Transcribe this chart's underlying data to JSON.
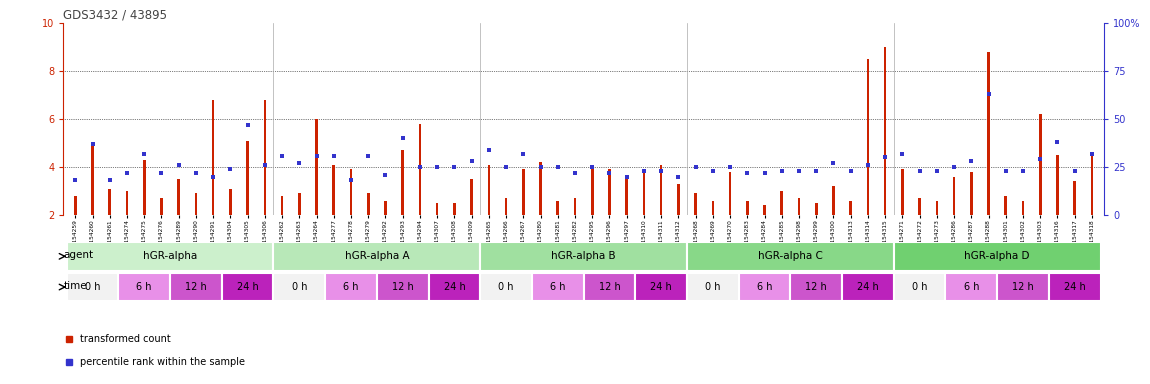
{
  "title": "GDS3432 / 43895",
  "samples": [
    "GSM154259",
    "GSM154260",
    "GSM154261",
    "GSM154274",
    "GSM154275",
    "GSM154276",
    "GSM154289",
    "GSM154290",
    "GSM154291",
    "GSM154304",
    "GSM154305",
    "GSM154306",
    "GSM154262",
    "GSM154263",
    "GSM154264",
    "GSM154277",
    "GSM154278",
    "GSM154279",
    "GSM154292",
    "GSM154293",
    "GSM154294",
    "GSM154307",
    "GSM154308",
    "GSM154309",
    "GSM154265",
    "GSM154266",
    "GSM154267",
    "GSM154280",
    "GSM154281",
    "GSM154282",
    "GSM154295",
    "GSM154296",
    "GSM154297",
    "GSM154310",
    "GSM154311",
    "GSM154312",
    "GSM154268",
    "GSM154269",
    "GSM154270",
    "GSM154283",
    "GSM154284",
    "GSM154285",
    "GSM154298",
    "GSM154299",
    "GSM154300",
    "GSM154313",
    "GSM154314",
    "GSM154315",
    "GSM154271",
    "GSM154272",
    "GSM154273",
    "GSM154286",
    "GSM154287",
    "GSM154288",
    "GSM154301",
    "GSM154302",
    "GSM154303",
    "GSM154316",
    "GSM154317",
    "GSM154318"
  ],
  "red_values": [
    2.8,
    4.9,
    3.1,
    3.0,
    4.3,
    2.7,
    3.5,
    2.9,
    6.8,
    3.1,
    5.1,
    6.8,
    2.8,
    2.9,
    6.0,
    4.1,
    3.9,
    2.9,
    2.6,
    4.7,
    5.8,
    2.5,
    2.5,
    3.5,
    4.1,
    2.7,
    3.9,
    4.2,
    2.6,
    2.7,
    4.0,
    3.9,
    3.5,
    3.9,
    4.1,
    3.3,
    2.9,
    2.6,
    3.8,
    2.6,
    2.4,
    3.0,
    2.7,
    2.5,
    3.2,
    2.6,
    8.5,
    9.0,
    3.9,
    2.7,
    2.6,
    3.6,
    3.8,
    8.8,
    2.8,
    2.6,
    6.2,
    4.5,
    3.4,
    4.5
  ],
  "blue_values_pct": [
    18,
    37,
    18,
    22,
    32,
    22,
    26,
    22,
    20,
    24,
    47,
    26,
    31,
    27,
    31,
    31,
    18,
    31,
    21,
    40,
    25,
    25,
    25,
    28,
    34,
    25,
    32,
    25,
    25,
    22,
    25,
    22,
    20,
    23,
    23,
    20,
    25,
    23,
    25,
    22,
    22,
    23,
    23,
    23,
    27,
    23,
    26,
    30,
    32,
    23,
    23,
    25,
    28,
    63,
    23,
    23,
    29,
    38,
    23,
    32
  ],
  "groups": [
    {
      "label": "hGR-alpha",
      "start": 0,
      "end": 12,
      "color": "#ccf0cc"
    },
    {
      "label": "hGR-alpha A",
      "start": 12,
      "end": 24,
      "color": "#b8e8b8"
    },
    {
      "label": "hGR-alpha B",
      "start": 24,
      "end": 36,
      "color": "#a0e0a0"
    },
    {
      "label": "hGR-alpha C",
      "start": 36,
      "end": 48,
      "color": "#88d888"
    },
    {
      "label": "hGR-alpha D",
      "start": 48,
      "end": 60,
      "color": "#70d070"
    }
  ],
  "time_labels": [
    "0 h",
    "6 h",
    "12 h",
    "24 h"
  ],
  "time_colors": [
    "#f2f2f2",
    "#e890e8",
    "#cc55cc",
    "#bb22bb"
  ],
  "ylim_left": [
    2,
    10
  ],
  "ylim_right": [
    0,
    100
  ],
  "yticks_left": [
    2,
    4,
    6,
    8,
    10
  ],
  "yticks_right": [
    0,
    25,
    50,
    75,
    100
  ],
  "ytick_right_labels": [
    "0",
    "25",
    "50",
    "75",
    "100%"
  ],
  "grid_lines": [
    4,
    6,
    8
  ],
  "bar_color": "#cc2200",
  "dot_color": "#3333cc",
  "title_color": "#444444",
  "axis_color_left": "#cc2200",
  "axis_color_right": "#3333cc",
  "bar_width": 0.15,
  "dot_size": 3.0
}
